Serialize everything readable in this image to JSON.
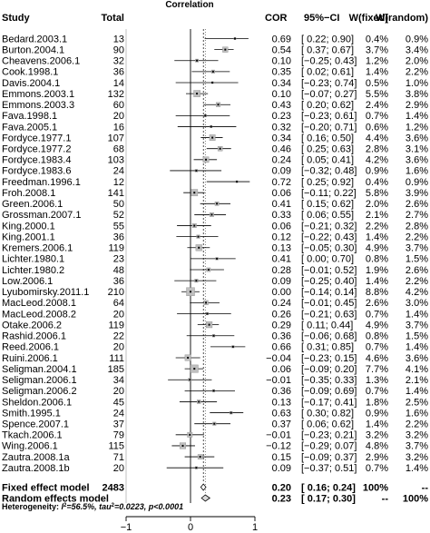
{
  "chart_data": {
    "type": "forest",
    "title": "Correlation",
    "columns": {
      "study": "Study",
      "total": "Total",
      "effect": "COR",
      "ci": "95%−CI",
      "w_fixed": "W(fixed)",
      "w_random": "W(random)"
    },
    "xlim": [
      -1,
      1
    ],
    "xticks": [
      -1,
      0,
      1
    ],
    "xtick_labels": [
      "−1",
      "0",
      "1"
    ],
    "reference_line": 0,
    "studies": [
      {
        "study": "Bedard.2003.1",
        "total": 13,
        "cor": 0.69,
        "lo": 0.22,
        "hi": 0.9,
        "ci": "[ 0.22; 0.90]",
        "w_fixed": "0.4%",
        "w_random": "0.9%"
      },
      {
        "study": "Burton.2004.1",
        "total": 90,
        "cor": 0.54,
        "lo": 0.37,
        "hi": 0.67,
        "ci": "[ 0.37; 0.67]",
        "w_fixed": "3.7%",
        "w_random": "3.4%"
      },
      {
        "study": "Cheavens.2006.1",
        "total": 32,
        "cor": 0.1,
        "lo": -0.25,
        "hi": 0.43,
        "ci": "[−0.25; 0.43]",
        "w_fixed": "1.2%",
        "w_random": "2.0%"
      },
      {
        "study": "Cook.1998.1",
        "total": 36,
        "cor": 0.35,
        "lo": 0.02,
        "hi": 0.61,
        "ci": "[ 0.02; 0.61]",
        "w_fixed": "1.4%",
        "w_random": "2.2%"
      },
      {
        "study": "Davis.2004.1",
        "total": 14,
        "cor": 0.34,
        "lo": -0.23,
        "hi": 0.74,
        "ci": "[−0.23; 0.74]",
        "w_fixed": "0.5%",
        "w_random": "1.0%"
      },
      {
        "study": "Emmons.2003.1",
        "total": 132,
        "cor": 0.1,
        "lo": -0.07,
        "hi": 0.27,
        "ci": "[−0.07; 0.27]",
        "w_fixed": "5.5%",
        "w_random": "3.8%"
      },
      {
        "study": "Emmons.2003.3",
        "total": 60,
        "cor": 0.43,
        "hi": 0.62,
        "lo": 0.2,
        "ci": "[ 0.20; 0.62]",
        "w_fixed": "2.4%",
        "w_random": "2.9%"
      },
      {
        "study": "Fava.1998.1",
        "total": 20,
        "cor": 0.23,
        "lo": -0.23,
        "hi": 0.61,
        "ci": "[−0.23; 0.61]",
        "w_fixed": "0.7%",
        "w_random": "1.4%"
      },
      {
        "study": "Fava.2005.1",
        "total": 16,
        "cor": 0.32,
        "lo": -0.2,
        "hi": 0.71,
        "ci": "[−0.20; 0.71]",
        "w_fixed": "0.6%",
        "w_random": "1.2%"
      },
      {
        "study": "Fordyce.1977.1",
        "total": 107,
        "cor": 0.34,
        "lo": 0.16,
        "hi": 0.5,
        "ci": "[ 0.16; 0.50]",
        "w_fixed": "4.4%",
        "w_random": "3.6%"
      },
      {
        "study": "Fordyce.1977.2",
        "total": 68,
        "cor": 0.46,
        "lo": 0.25,
        "hi": 0.63,
        "ci": "[ 0.25; 0.63]",
        "w_fixed": "2.8%",
        "w_random": "3.1%"
      },
      {
        "study": "Fordyce.1983.4",
        "total": 103,
        "cor": 0.24,
        "lo": 0.05,
        "hi": 0.41,
        "ci": "[ 0.05; 0.41]",
        "w_fixed": "4.2%",
        "w_random": "3.6%"
      },
      {
        "study": "Fordyce.1983.6",
        "total": 24,
        "cor": 0.09,
        "lo": -0.32,
        "hi": 0.48,
        "ci": "[−0.32; 0.48]",
        "w_fixed": "0.9%",
        "w_random": "1.6%"
      },
      {
        "study": "Freedman.1996.1",
        "total": 12,
        "cor": 0.72,
        "lo": 0.25,
        "hi": 0.92,
        "ci": "[ 0.25; 0.92]",
        "w_fixed": "0.4%",
        "w_random": "0.9%"
      },
      {
        "study": "Froh.2008.1",
        "total": 141,
        "cor": 0.06,
        "lo": -0.11,
        "hi": 0.22,
        "ci": "[−0.11; 0.22]",
        "w_fixed": "5.8%",
        "w_random": "3.9%"
      },
      {
        "study": "Green.2006.1",
        "total": 50,
        "cor": 0.41,
        "lo": 0.15,
        "hi": 0.62,
        "ci": "[ 0.15; 0.62]",
        "w_fixed": "2.0%",
        "w_random": "2.6%"
      },
      {
        "study": "Grossman.2007.1",
        "total": 52,
        "cor": 0.33,
        "lo": 0.06,
        "hi": 0.55,
        "ci": "[ 0.06; 0.55]",
        "w_fixed": "2.1%",
        "w_random": "2.7%"
      },
      {
        "study": "King.2000.1",
        "total": 55,
        "cor": 0.06,
        "lo": -0.21,
        "hi": 0.32,
        "ci": "[−0.21; 0.32]",
        "w_fixed": "2.2%",
        "w_random": "2.8%"
      },
      {
        "study": "King.2001.1",
        "total": 36,
        "cor": 0.12,
        "lo": -0.22,
        "hi": 0.43,
        "ci": "[−0.22; 0.43]",
        "w_fixed": "1.4%",
        "w_random": "2.2%"
      },
      {
        "study": "Kremers.2006.1",
        "total": 119,
        "cor": 0.13,
        "lo": -0.05,
        "hi": 0.3,
        "ci": "[−0.05; 0.30]",
        "w_fixed": "4.9%",
        "w_random": "3.7%"
      },
      {
        "study": "Lichter.1980.1",
        "total": 23,
        "cor": 0.41,
        "lo": 0.0,
        "hi": 0.7,
        "ci": "[ 0.00; 0.70]",
        "w_fixed": "0.8%",
        "w_random": "1.5%"
      },
      {
        "study": "Lichter.1980.2",
        "total": 48,
        "cor": 0.28,
        "lo": -0.01,
        "hi": 0.52,
        "ci": "[−0.01; 0.52]",
        "w_fixed": "1.9%",
        "w_random": "2.6%"
      },
      {
        "study": "Low.2006.1",
        "total": 36,
        "cor": 0.09,
        "lo": -0.25,
        "hi": 0.4,
        "ci": "[−0.25; 0.40]",
        "w_fixed": "1.4%",
        "w_random": "2.2%"
      },
      {
        "study": "Lyubomirsky.2011.1",
        "total": 210,
        "cor": 0.0,
        "lo": -0.14,
        "hi": 0.14,
        "ci": "[−0.14; 0.14]",
        "w_fixed": "8.8%",
        "w_random": "4.2%"
      },
      {
        "study": "MacLeod.2008.1",
        "total": 64,
        "cor": 0.24,
        "lo": -0.01,
        "hi": 0.45,
        "ci": "[−0.01; 0.45]",
        "w_fixed": "2.6%",
        "w_random": "3.0%"
      },
      {
        "study": "MacLeod.2008.2",
        "total": 20,
        "cor": 0.26,
        "lo": -0.21,
        "hi": 0.63,
        "ci": "[−0.21; 0.63]",
        "w_fixed": "0.7%",
        "w_random": "1.4%"
      },
      {
        "study": "Otake.2006.2",
        "total": 119,
        "cor": 0.29,
        "lo": 0.11,
        "hi": 0.44,
        "ci": "[ 0.11; 0.44]",
        "w_fixed": "4.9%",
        "w_random": "3.7%"
      },
      {
        "study": "Rashid.2006.1",
        "total": 22,
        "cor": 0.36,
        "lo": -0.06,
        "hi": 0.68,
        "ci": "[−0.06; 0.68]",
        "w_fixed": "0.8%",
        "w_random": "1.5%"
      },
      {
        "study": "Reed.2006.1",
        "total": 20,
        "cor": 0.66,
        "lo": 0.31,
        "hi": 0.85,
        "ci": "[ 0.31; 0.85]",
        "w_fixed": "0.7%",
        "w_random": "1.4%"
      },
      {
        "study": "Ruini.2006.1",
        "total": 111,
        "cor": -0.04,
        "lo": -0.23,
        "hi": 0.15,
        "ci": "[−0.23; 0.15]",
        "w_fixed": "4.6%",
        "w_random": "3.6%"
      },
      {
        "study": "Seligman.2004.1",
        "total": 185,
        "cor": 0.06,
        "lo": -0.09,
        "hi": 0.2,
        "ci": "[−0.09; 0.20]",
        "w_fixed": "7.7%",
        "w_random": "4.1%"
      },
      {
        "study": "Seligman.2006.1",
        "total": 34,
        "cor": -0.01,
        "lo": -0.35,
        "hi": 0.33,
        "ci": "[−0.35; 0.33]",
        "w_fixed": "1.3%",
        "w_random": "2.1%"
      },
      {
        "study": "Seligman.2006.2",
        "total": 20,
        "cor": 0.36,
        "lo": -0.09,
        "hi": 0.69,
        "ci": "[−0.09; 0.69]",
        "w_fixed": "0.7%",
        "w_random": "1.4%"
      },
      {
        "study": "Sheldon.2006.1",
        "total": 45,
        "cor": 0.13,
        "lo": -0.17,
        "hi": 0.41,
        "ci": "[−0.17; 0.41]",
        "w_fixed": "1.8%",
        "w_random": "2.5%"
      },
      {
        "study": "Smith.1995.1",
        "total": 24,
        "cor": 0.63,
        "lo": 0.3,
        "hi": 0.82,
        "ci": "[ 0.30; 0.82]",
        "w_fixed": "0.9%",
        "w_random": "1.6%"
      },
      {
        "study": "Spence.2007.1",
        "total": 37,
        "cor": 0.37,
        "lo": 0.06,
        "hi": 0.62,
        "ci": "[ 0.06; 0.62]",
        "w_fixed": "1.4%",
        "w_random": "2.2%"
      },
      {
        "study": "Tkach.2006.1",
        "total": 79,
        "cor": -0.01,
        "lo": -0.23,
        "hi": 0.21,
        "ci": "[−0.23; 0.21]",
        "w_fixed": "3.2%",
        "w_random": "3.2%"
      },
      {
        "study": "Wing.2006.1",
        "total": 115,
        "cor": -0.12,
        "lo": -0.29,
        "hi": 0.07,
        "ci": "[−0.29; 0.07]",
        "w_fixed": "4.8%",
        "w_random": "3.7%"
      },
      {
        "study": "Zautra.2008.1a",
        "total": 71,
        "cor": 0.15,
        "lo": -0.09,
        "hi": 0.37,
        "ci": "[−0.09; 0.37]",
        "w_fixed": "2.9%",
        "w_random": "3.2%"
      },
      {
        "study": "Zautra.2008.1b",
        "total": 20,
        "cor": 0.09,
        "lo": -0.37,
        "hi": 0.51,
        "ci": "[−0.37; 0.51]",
        "w_fixed": "0.7%",
        "w_random": "1.4%"
      }
    ],
    "summaries": [
      {
        "label": "Fixed effect model",
        "total": "2483",
        "cor": 0.2,
        "lo": 0.16,
        "hi": 0.24,
        "ci": "[ 0.16; 0.24]",
        "w_fixed": "100%",
        "w_random": "--"
      },
      {
        "label": "Random effects model",
        "total": "",
        "cor": 0.23,
        "lo": 0.17,
        "hi": 0.3,
        "ci": "[ 0.17; 0.30]",
        "w_fixed": "--",
        "w_random": "100%"
      }
    ],
    "heterogeneity": {
      "prefix": "Heterogeneity: ",
      "i2_sym": "I",
      "i2_sup": "2",
      "i2_rest": "=56.5%, tau",
      "tau_sup": "2",
      "tau_rest": "=0.0223, ",
      "p_sym": "p",
      "p_rest": "<0.0001"
    }
  }
}
